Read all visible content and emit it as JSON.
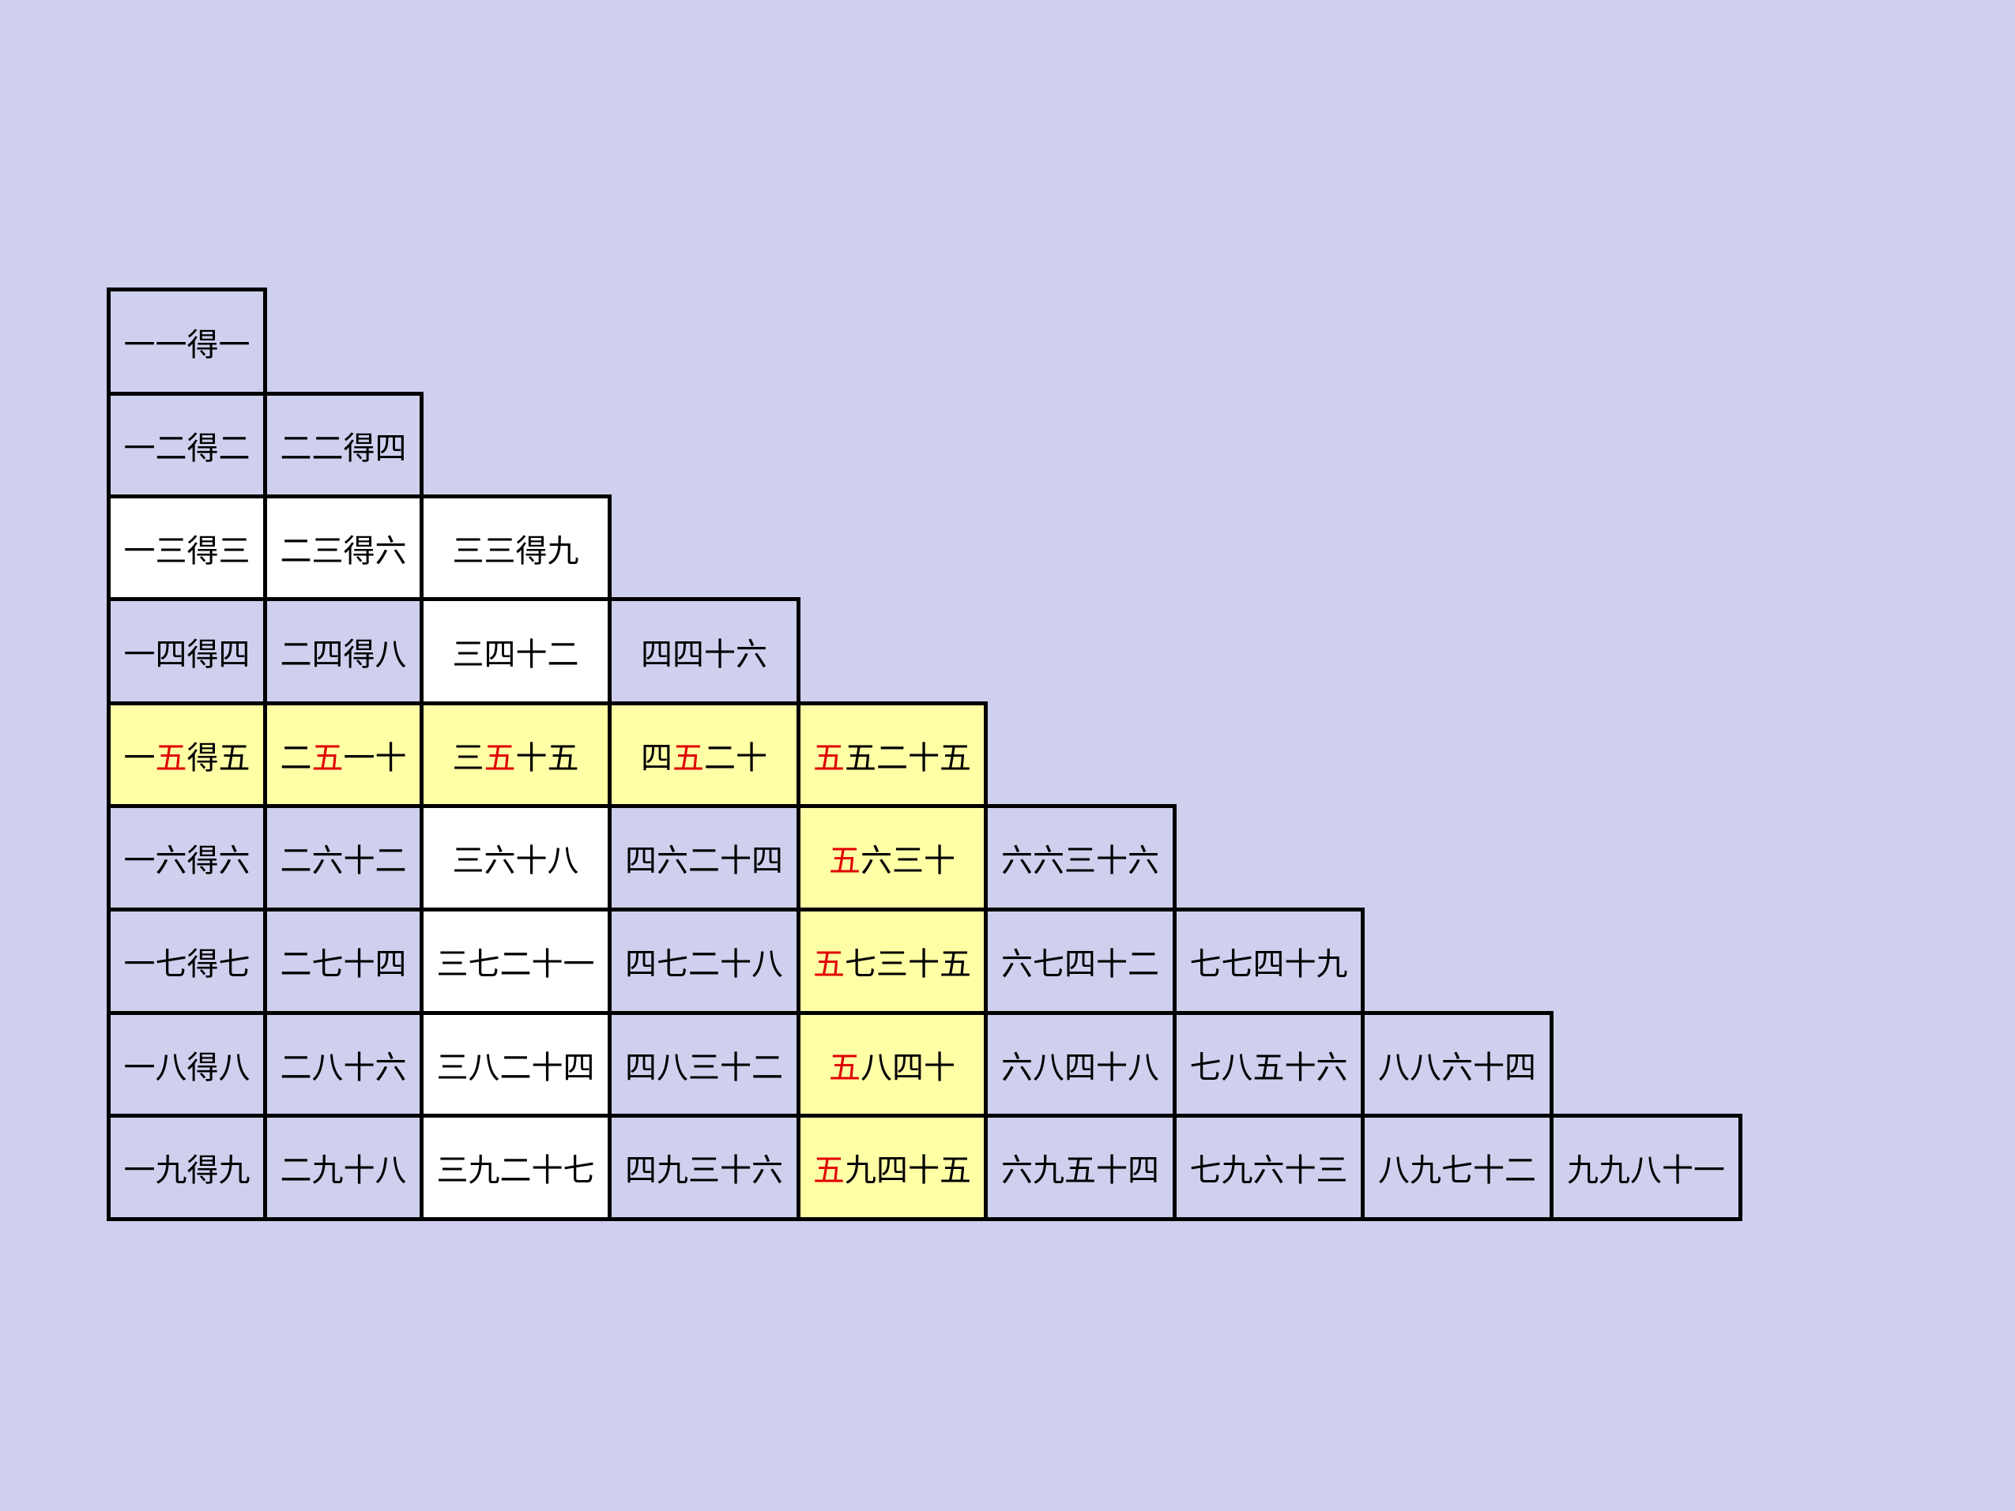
{
  "colors": {
    "background": "#cfcfee",
    "lavender": "#cfcfee",
    "white": "#ffffff",
    "yellow": "#ffffa6",
    "red": "#e00000"
  },
  "table": {
    "rows": [
      [
        {
          "text": "一一得一",
          "fill": "lavender"
        }
      ],
      [
        {
          "text": "一二得二",
          "fill": "lavender"
        },
        {
          "text": "二二得四",
          "fill": "lavender"
        }
      ],
      [
        {
          "text": "一三得三",
          "fill": "white"
        },
        {
          "text": "二三得六",
          "fill": "white"
        },
        {
          "text": "三三得九",
          "fill": "white"
        }
      ],
      [
        {
          "text": "一四得四",
          "fill": "lavender"
        },
        {
          "text": "二四得八",
          "fill": "lavender"
        },
        {
          "text": "三四十二",
          "fill": "white"
        },
        {
          "text": "四四十六",
          "fill": "lavender"
        }
      ],
      [
        {
          "parts": [
            "一",
            "五",
            "得五"
          ],
          "red_part": 1,
          "fill": "yellow"
        },
        {
          "parts": [
            "二",
            "五",
            "一十"
          ],
          "red_part": 1,
          "fill": "yellow"
        },
        {
          "parts": [
            "三",
            "五",
            "十五"
          ],
          "red_part": 1,
          "fill": "yellow"
        },
        {
          "parts": [
            "四",
            "五",
            "二十"
          ],
          "red_part": 1,
          "fill": "yellow"
        },
        {
          "parts": [
            "五",
            "五二十五"
          ],
          "red_part": 0,
          "fill": "yellow"
        }
      ],
      [
        {
          "text": "一六得六",
          "fill": "lavender"
        },
        {
          "text": "二六十二",
          "fill": "lavender"
        },
        {
          "text": "三六十八",
          "fill": "white"
        },
        {
          "text": "四六二十四",
          "fill": "lavender"
        },
        {
          "parts": [
            "五",
            "六三十"
          ],
          "red_part": 0,
          "fill": "yellow"
        },
        {
          "text": "六六三十六",
          "fill": "lavender"
        }
      ],
      [
        {
          "text": "一七得七",
          "fill": "lavender"
        },
        {
          "text": "二七十四",
          "fill": "lavender"
        },
        {
          "text": "三七二十一",
          "fill": "white"
        },
        {
          "text": "四七二十八",
          "fill": "lavender"
        },
        {
          "parts": [
            "五",
            "七三十五"
          ],
          "red_part": 0,
          "fill": "yellow"
        },
        {
          "text": "六七四十二",
          "fill": "lavender"
        },
        {
          "text": "七七四十九",
          "fill": "lavender"
        }
      ],
      [
        {
          "text": "一八得八",
          "fill": "lavender"
        },
        {
          "text": "二八十六",
          "fill": "lavender"
        },
        {
          "text": "三八二十四",
          "fill": "white"
        },
        {
          "text": "四八三十二",
          "fill": "lavender"
        },
        {
          "parts": [
            "五",
            "八四十"
          ],
          "red_part": 0,
          "fill": "yellow"
        },
        {
          "text": "六八四十八",
          "fill": "lavender"
        },
        {
          "text": "七八五十六",
          "fill": "lavender"
        },
        {
          "text": "八八六十四",
          "fill": "lavender"
        }
      ],
      [
        {
          "text": "一九得九",
          "fill": "lavender"
        },
        {
          "text": "二九十八",
          "fill": "lavender"
        },
        {
          "text": "三九二十七",
          "fill": "white"
        },
        {
          "text": "四九三十六",
          "fill": "lavender"
        },
        {
          "parts": [
            "五",
            "九四十五"
          ],
          "red_part": 0,
          "fill": "yellow"
        },
        {
          "text": "六九五十四",
          "fill": "lavender"
        },
        {
          "text": "七九六十三",
          "fill": "lavender"
        },
        {
          "text": "八九七十二",
          "fill": "lavender"
        },
        {
          "text": "九九八十一",
          "fill": "lavender"
        }
      ]
    ]
  }
}
